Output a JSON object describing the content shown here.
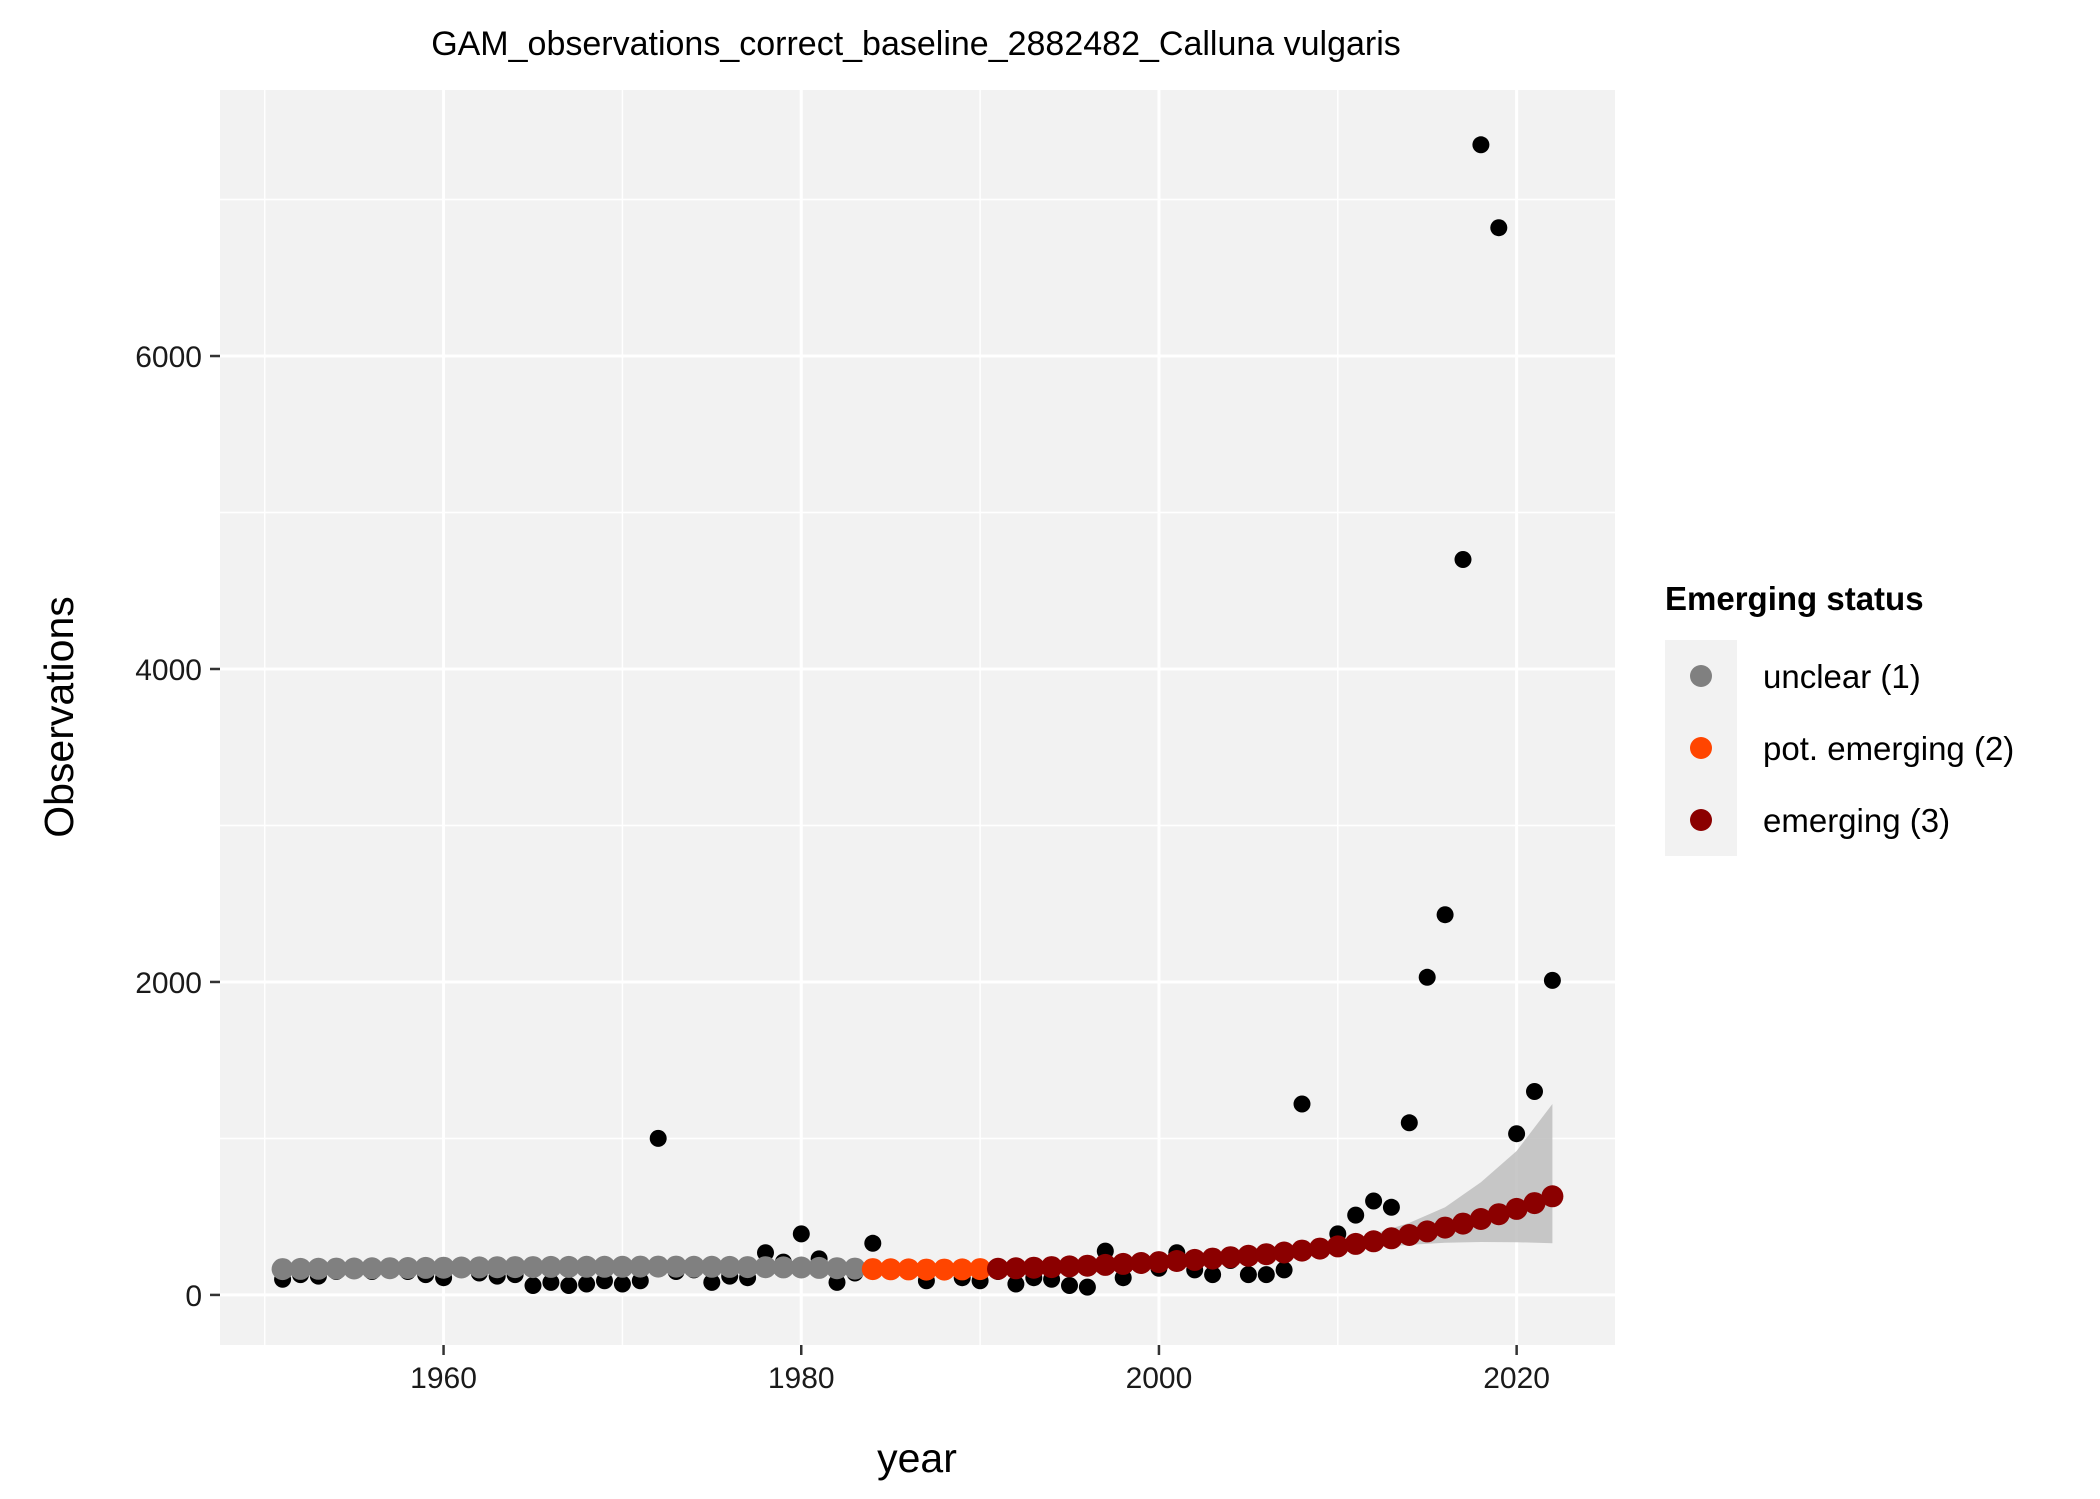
{
  "chart_data": {
    "type": "scatter",
    "title": "GAM_observations_correct_baseline_2882482_Calluna vulgaris",
    "xlabel": "year",
    "ylabel": "Observations",
    "xlim": [
      1947.5,
      2025.5
    ],
    "ylim": [
      -320,
      7700
    ],
    "x_ticks": [
      1960,
      1980,
      2000,
      2020
    ],
    "y_ticks": [
      0,
      2000,
      4000,
      6000
    ],
    "x_tick_labels": [
      "1960",
      "1980",
      "2000",
      "2020"
    ],
    "y_tick_labels": [
      "0",
      "2000",
      "4000",
      "6000"
    ],
    "grid": true,
    "legend": {
      "title": "Emerging status",
      "placement": "right",
      "entries": [
        {
          "label": "unclear (1)",
          "color": "#808080"
        },
        {
          "label": "pot. emerging (2)",
          "color": "#ff4500"
        },
        {
          "label": "emerging (3)",
          "color": "#8b0000"
        }
      ]
    },
    "colors": {
      "observations": "#000000",
      "unclear": "#808080",
      "pot_emerging": "#ff4500",
      "emerging": "#8b0000",
      "ribbon": "#bebebe",
      "panel": "#f2f2f2",
      "grid": "#ffffff"
    },
    "observations": {
      "x": [
        1951,
        1952,
        1953,
        1954,
        1955,
        1956,
        1957,
        1958,
        1959,
        1960,
        1961,
        1962,
        1963,
        1964,
        1965,
        1966,
        1967,
        1968,
        1969,
        1970,
        1971,
        1972,
        1973,
        1974,
        1975,
        1976,
        1977,
        1978,
        1979,
        1980,
        1981,
        1982,
        1983,
        1984,
        1985,
        1986,
        1987,
        1988,
        1989,
        1990,
        1991,
        1992,
        1993,
        1994,
        1995,
        1996,
        1997,
        1998,
        1999,
        2000,
        2001,
        2002,
        2003,
        2004,
        2005,
        2006,
        2007,
        2008,
        2009,
        2010,
        2011,
        2012,
        2013,
        2014,
        2015,
        2016,
        2017,
        2018,
        2019,
        2020,
        2021,
        2022
      ],
      "y": [
        100,
        130,
        120,
        150,
        160,
        150,
        170,
        150,
        130,
        110,
        170,
        140,
        120,
        130,
        60,
        80,
        60,
        70,
        90,
        70,
        90,
        1000,
        150,
        160,
        80,
        120,
        110,
        270,
        210,
        390,
        230,
        80,
        140,
        330,
        160,
        150,
        90,
        150,
        110,
        90,
        150,
        70,
        110,
        100,
        60,
        50,
        280,
        110,
        190,
        170,
        270,
        160,
        130,
        220,
        130,
        130,
        160,
        1220,
        300,
        390,
        510,
        600,
        560,
        1100,
        2030,
        2430,
        4700,
        7350,
        6820,
        1030,
        1300,
        2010
      ]
    },
    "fitted_series": [
      {
        "name": "unclear (1)",
        "x": [
          1951,
          1952,
          1953,
          1954,
          1955,
          1956,
          1957,
          1958,
          1959,
          1960,
          1961,
          1962,
          1963,
          1964,
          1965,
          1966,
          1967,
          1968,
          1969,
          1970,
          1971,
          1972,
          1973,
          1974,
          1975,
          1976,
          1977,
          1978,
          1979,
          1980,
          1981,
          1982,
          1983
        ],
        "y": [
          165,
          166,
          167,
          168,
          169,
          170,
          171,
          172,
          173,
          174,
          175,
          176,
          177,
          178,
          178,
          179,
          179,
          180,
          180,
          180,
          181,
          181,
          181,
          180,
          180,
          179,
          178,
          177,
          176,
          175,
          173,
          171,
          168
        ]
      },
      {
        "name": "pot. emerging (2)",
        "x": [
          1984,
          1985,
          1986,
          1987,
          1988,
          1989,
          1990
        ],
        "y": [
          165,
          164,
          163,
          162,
          162,
          163,
          165
        ]
      },
      {
        "name": "emerging (3)",
        "x": [
          1991,
          1992,
          1993,
          1994,
          1995,
          1996,
          1997,
          1998,
          1999,
          2000,
          2001,
          2002,
          2003,
          2004,
          2005,
          2006,
          2007,
          2008,
          2009,
          2010,
          2011,
          2012,
          2013,
          2014,
          2015,
          2016,
          2017,
          2018,
          2019,
          2020,
          2021,
          2022
        ],
        "y": [
          167,
          170,
          174,
          178,
          182,
          187,
          192,
          198,
          204,
          210,
          217,
          224,
          232,
          241,
          250,
          260,
          271,
          283,
          296,
          310,
          326,
          343,
          362,
          383,
          406,
          430,
          456,
          485,
          516,
          550,
          587,
          630
        ]
      }
    ],
    "ribbon": {
      "x": [
        2005,
        2008,
        2010,
        2012,
        2014,
        2016,
        2018,
        2020,
        2022
      ],
      "lower": [
        240,
        262,
        285,
        305,
        320,
        333,
        338,
        337,
        330
      ],
      "upper": [
        260,
        305,
        340,
        390,
        460,
        560,
        720,
        920,
        1220
      ]
    }
  }
}
